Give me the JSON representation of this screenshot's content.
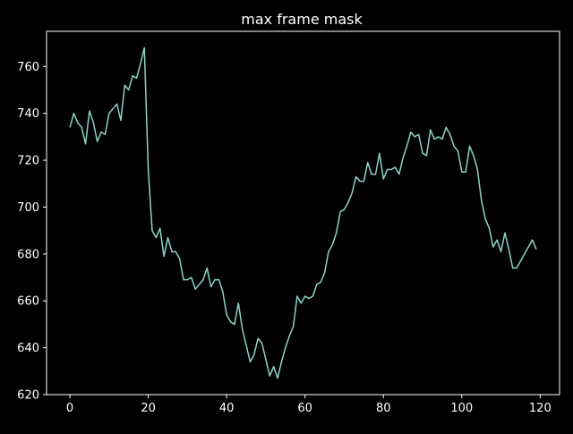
{
  "colors": {
    "background": "#000000",
    "axes": "#ffffff",
    "line": "#8dd3c7"
  },
  "chart_data": {
    "type": "line",
    "title": "max frame mask",
    "xlabel": "",
    "ylabel": "",
    "xlim": [
      -5.95,
      124.95
    ],
    "ylim": [
      620,
      775
    ],
    "xticks": [
      0,
      20,
      40,
      60,
      80,
      100,
      120
    ],
    "xtick_labels": [
      "0",
      "20",
      "40",
      "60",
      "80",
      "100",
      "120"
    ],
    "yticks": [
      620,
      640,
      660,
      680,
      700,
      720,
      740,
      760
    ],
    "ytick_labels": [
      "620",
      "640",
      "660",
      "680",
      "700",
      "720",
      "740",
      "760"
    ],
    "grid": false,
    "legend": "none",
    "series": [
      {
        "values": [
          734,
          740,
          736,
          734,
          727,
          741,
          736,
          728,
          732,
          731,
          740,
          742,
          744,
          737,
          752,
          750,
          756,
          755,
          761,
          768,
          716,
          690,
          687,
          691,
          679,
          687,
          681,
          681,
          678,
          669,
          669,
          670,
          665,
          667,
          669,
          674,
          666,
          669,
          669,
          664,
          654,
          651,
          650,
          659,
          648,
          641,
          634,
          637,
          644,
          642,
          635,
          628,
          632,
          627,
          634,
          640,
          645,
          649,
          662,
          659,
          662,
          661,
          662,
          667,
          668,
          672,
          681,
          684,
          689,
          698,
          699,
          702,
          706,
          713,
          711,
          711,
          719,
          714,
          714,
          723,
          712,
          716,
          716,
          717,
          714,
          721,
          726,
          732,
          730,
          731,
          723,
          722,
          733,
          729,
          730,
          729,
          734,
          731,
          726,
          724,
          715,
          715,
          726,
          722,
          716,
          703,
          695,
          691,
          683,
          686,
          681,
          689,
          682,
          674,
          674,
          677,
          680,
          683,
          686,
          682
        ]
      }
    ]
  }
}
